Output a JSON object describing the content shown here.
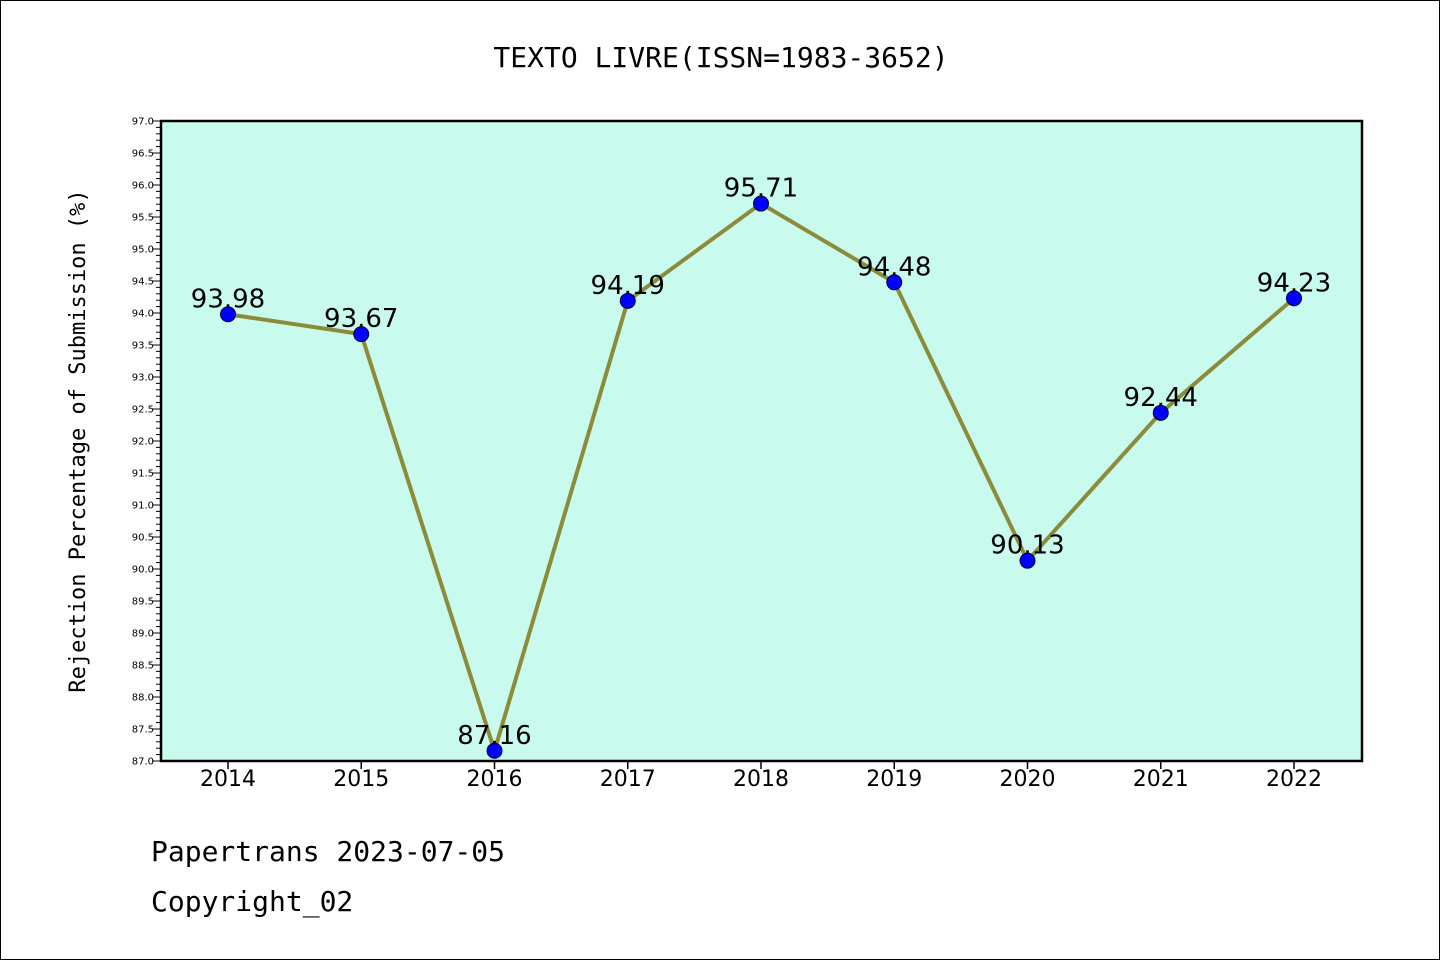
{
  "chart_data": {
    "type": "line",
    "title": "TEXTO LIVRE(ISSN=1983-3652)",
    "xlabel": "",
    "ylabel": "Rejection Percentage of Submission (%)",
    "categories": [
      "2014",
      "2015",
      "2016",
      "2017",
      "2018",
      "2019",
      "2020",
      "2021",
      "2022"
    ],
    "series": [
      {
        "values": [
          93.98,
          93.67,
          87.16,
          94.19,
          95.71,
          94.48,
          90.13,
          92.44,
          94.23
        ]
      }
    ],
    "data_labels": [
      "93.98",
      "93.67",
      "87.16",
      "94.19",
      "95.71",
      "94.48",
      "90.13",
      "92.44",
      "94.23"
    ],
    "ylim": [
      87.0,
      97.0
    ],
    "ytick_labels": [
      "87.0",
      "87.5",
      "88.0",
      "88.5",
      "89.0",
      "89.5",
      "90.0",
      "90.5",
      "91.0",
      "91.5",
      "92.0",
      "92.5",
      "93.0",
      "93.5",
      "94.0",
      "94.5",
      "95.0",
      "95.5",
      "96.0",
      "96.5",
      "97.0"
    ],
    "grid": false,
    "colors": {
      "plot_background": "#c8fbed",
      "line": "#8b8b3a",
      "marker": "#0000ff"
    }
  },
  "footer": {
    "source": "Papertrans 2023-07-05",
    "copyright": "Copyright_02"
  }
}
